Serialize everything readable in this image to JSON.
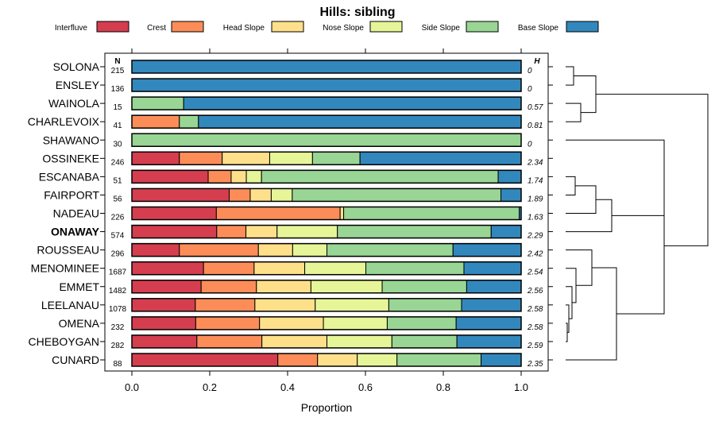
{
  "chart_data": {
    "type": "bar",
    "orientation": "horizontal",
    "stacked": true,
    "title": "Hills: sibling",
    "xlabel": "Proportion",
    "xlim": [
      0,
      1
    ],
    "x_ticks": [
      "0.0",
      "0.2",
      "0.4",
      "0.6",
      "0.8",
      "1.0"
    ],
    "x_tick_values": [
      0,
      0.2,
      0.4,
      0.6,
      0.8,
      1.0
    ],
    "n_header": "N",
    "h_header": "H",
    "legend": [
      {
        "name": "Interfluve",
        "color": "#d53e4f"
      },
      {
        "name": "Crest",
        "color": "#fc8d59"
      },
      {
        "name": "Head Slope",
        "color": "#fee08b"
      },
      {
        "name": "Nose Slope",
        "color": "#e6f598"
      },
      {
        "name": "Side Slope",
        "color": "#99d594"
      },
      {
        "name": "Base Slope",
        "color": "#3288bd"
      }
    ],
    "rows": [
      {
        "name": "SOLONA",
        "n": "215",
        "h": "0",
        "values": [
          0,
          0,
          0,
          0,
          0,
          1.0
        ]
      },
      {
        "name": "ENSLEY",
        "n": "136",
        "h": "0",
        "values": [
          0,
          0,
          0,
          0,
          0,
          1.0
        ]
      },
      {
        "name": "WAINOLA",
        "n": "15",
        "h": "0.57",
        "values": [
          0,
          0,
          0,
          0,
          0.133,
          0.867
        ]
      },
      {
        "name": "CHARLEVOIX",
        "n": "41",
        "h": "0.81",
        "values": [
          0,
          0.122,
          0,
          0,
          0.049,
          0.829
        ]
      },
      {
        "name": "SHAWANO",
        "n": "30",
        "h": "0",
        "values": [
          0,
          0,
          0,
          0,
          1.0,
          0
        ]
      },
      {
        "name": "OSSINEKE",
        "n": "246",
        "h": "2.34",
        "values": [
          0.122,
          0.11,
          0.122,
          0.11,
          0.122,
          0.414
        ]
      },
      {
        "name": "ESCANABA",
        "n": "51",
        "h": "1.74",
        "values": [
          0.196,
          0.059,
          0.039,
          0.039,
          0.608,
          0.059
        ]
      },
      {
        "name": "FAIRPORT",
        "n": "56",
        "h": "1.89",
        "values": [
          0.25,
          0.054,
          0.054,
          0.054,
          0.536,
          0.052
        ]
      },
      {
        "name": "NADEAU",
        "n": "226",
        "h": "1.63",
        "values": [
          0.217,
          0.318,
          0.009,
          0,
          0.451,
          0.005
        ]
      },
      {
        "name": "ONAWAY",
        "n": "574",
        "h": "2.29",
        "values": [
          0.218,
          0.075,
          0.08,
          0.155,
          0.395,
          0.077
        ],
        "bold": true
      },
      {
        "name": "ROUSSEAU",
        "n": "296",
        "h": "2.42",
        "values": [
          0.122,
          0.203,
          0.088,
          0.088,
          0.324,
          0.175
        ]
      },
      {
        "name": "MENOMINEE",
        "n": "1687",
        "h": "2.54",
        "values": [
          0.184,
          0.13,
          0.13,
          0.157,
          0.252,
          0.147
        ]
      },
      {
        "name": "EMMET",
        "n": "1482",
        "h": "2.56",
        "values": [
          0.178,
          0.142,
          0.14,
          0.183,
          0.217,
          0.14
        ]
      },
      {
        "name": "LEELANAU",
        "n": "1078",
        "h": "2.58",
        "values": [
          0.163,
          0.153,
          0.155,
          0.189,
          0.187,
          0.153
        ]
      },
      {
        "name": "OMENA",
        "n": "232",
        "h": "2.58",
        "values": [
          0.164,
          0.164,
          0.164,
          0.164,
          0.177,
          0.167
        ]
      },
      {
        "name": "CHEBOYGAN",
        "n": "282",
        "h": "2.59",
        "values": [
          0.167,
          0.167,
          0.167,
          0.167,
          0.167,
          0.165
        ]
      },
      {
        "name": "CUNARD",
        "n": "88",
        "h": "2.35",
        "values": [
          0.375,
          0.102,
          0.102,
          0.102,
          0.216,
          0.103
        ]
      }
    ]
  }
}
